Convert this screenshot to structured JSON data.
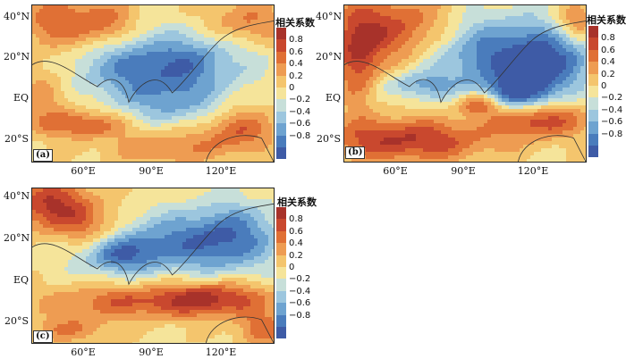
{
  "colorbar": {
    "title": "相关系数",
    "ticks": [
      "0.8",
      "0.6",
      "0.4",
      "0.2",
      "0",
      "−0.2",
      "−0.4",
      "−0.6",
      "−0.8"
    ],
    "colors": [
      "#a8322a",
      "#c9482e",
      "#e07035",
      "#ee9c52",
      "#f4c56d",
      "#f5e49a",
      "#c7dfd9",
      "#9cc6de",
      "#6ea3d0",
      "#4a7cbc",
      "#3e5ba6"
    ]
  },
  "axes": {
    "lat_labels": [
      "40°N",
      "20°N",
      "EQ",
      "20°S"
    ],
    "lon_labels": [
      "60°E",
      "90°E",
      "120°E"
    ]
  },
  "panels": [
    {
      "id": "a",
      "tag": "(a)"
    },
    {
      "id": "b",
      "tag": "(b)"
    },
    {
      "id": "c",
      "tag": "(c)"
    }
  ]
}
